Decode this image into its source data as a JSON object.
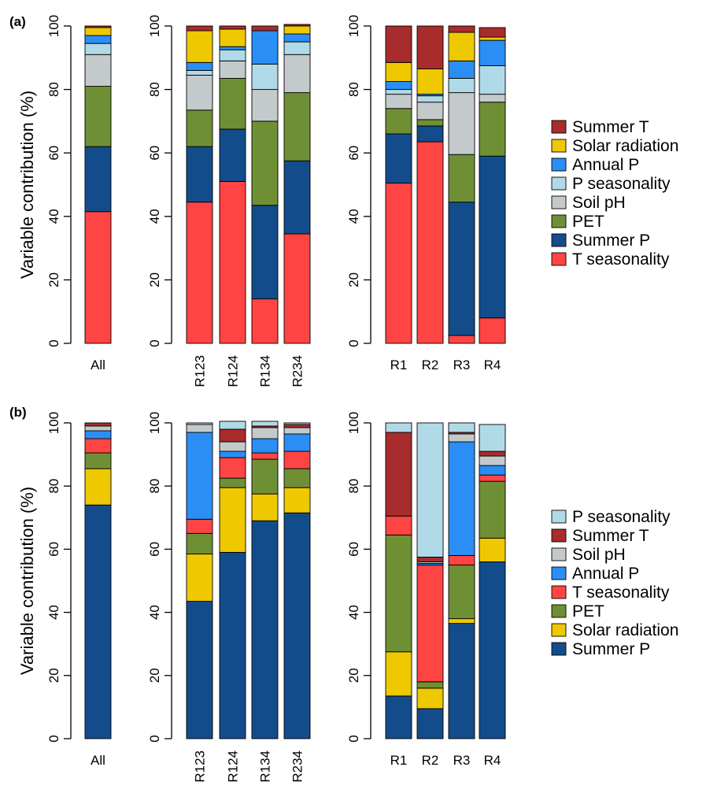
{
  "colors": {
    "Summer T": "#a82c2c",
    "Solar radiation": "#eec800",
    "Annual P": "#2b8ef5",
    "P seasonality": "#b0dae8",
    "Soil pH": "#c4cacb",
    "PET": "#6f8f35",
    "Summer P": "#134c8a",
    "T seasonality": "#ff4444"
  },
  "chart_data": [
    {
      "type": "bar",
      "stacked": true,
      "panel_label": "(a)",
      "ylabel": "Variable contribution (%)",
      "ylim": [
        0,
        100
      ],
      "yticks": [
        "0",
        "20",
        "40",
        "60",
        "80",
        "100"
      ],
      "legend": [
        "Summer T",
        "Solar radiation",
        "Annual P",
        "P seasonality",
        "Soil pH",
        "PET",
        "Summer P",
        "T seasonality"
      ],
      "groups": [
        {
          "categories": [
            "All"
          ],
          "label_rotation": 0,
          "bars": [
            {
              "category": "All",
              "stack": [
                {
                  "name": "T seasonality",
                  "value": 41.5
                },
                {
                  "name": "Summer P",
                  "value": 20.5
                },
                {
                  "name": "PET",
                  "value": 19.0
                },
                {
                  "name": "Soil pH",
                  "value": 10.0
                },
                {
                  "name": "P seasonality",
                  "value": 3.5
                },
                {
                  "name": "Annual P",
                  "value": 2.5
                },
                {
                  "name": "Solar radiation",
                  "value": 2.5
                },
                {
                  "name": "Summer T",
                  "value": 0.5
                }
              ]
            }
          ]
        },
        {
          "categories": [
            "R123",
            "R124",
            "R134",
            "R234"
          ],
          "label_rotation": -90,
          "bars": [
            {
              "category": "R123",
              "stack": [
                {
                  "name": "T seasonality",
                  "value": 44.5
                },
                {
                  "name": "Summer P",
                  "value": 17.5
                },
                {
                  "name": "PET",
                  "value": 11.5
                },
                {
                  "name": "Soil pH",
                  "value": 11.0
                },
                {
                  "name": "P seasonality",
                  "value": 1.5
                },
                {
                  "name": "Annual P",
                  "value": 2.5
                },
                {
                  "name": "Solar radiation",
                  "value": 10.0
                },
                {
                  "name": "Summer T",
                  "value": 1.5
                }
              ]
            },
            {
              "category": "R124",
              "stack": [
                {
                  "name": "T seasonality",
                  "value": 51.0
                },
                {
                  "name": "Summer P",
                  "value": 16.5
                },
                {
                  "name": "PET",
                  "value": 16.0
                },
                {
                  "name": "Soil pH",
                  "value": 5.5
                },
                {
                  "name": "P seasonality",
                  "value": 3.5
                },
                {
                  "name": "Annual P",
                  "value": 1.0
                },
                {
                  "name": "Solar radiation",
                  "value": 5.5
                },
                {
                  "name": "Summer T",
                  "value": 1.0
                }
              ]
            },
            {
              "category": "R134",
              "stack": [
                {
                  "name": "T seasonality",
                  "value": 14.0
                },
                {
                  "name": "Summer P",
                  "value": 29.5
                },
                {
                  "name": "PET",
                  "value": 26.5
                },
                {
                  "name": "Soil pH",
                  "value": 10.0
                },
                {
                  "name": "P seasonality",
                  "value": 8.0
                },
                {
                  "name": "Annual P",
                  "value": 10.5
                },
                {
                  "name": "Solar radiation",
                  "value": 0.0
                },
                {
                  "name": "Summer T",
                  "value": 1.5
                }
              ]
            },
            {
              "category": "R234",
              "stack": [
                {
                  "name": "T seasonality",
                  "value": 34.5
                },
                {
                  "name": "Summer P",
                  "value": 23.0
                },
                {
                  "name": "PET",
                  "value": 21.5
                },
                {
                  "name": "Soil pH",
                  "value": 12.0
                },
                {
                  "name": "P seasonality",
                  "value": 4.0
                },
                {
                  "name": "Annual P",
                  "value": 2.5
                },
                {
                  "name": "Solar radiation",
                  "value": 2.5
                },
                {
                  "name": "Summer T",
                  "value": 0.5
                }
              ]
            }
          ]
        },
        {
          "categories": [
            "R1",
            "R2",
            "R3",
            "R4"
          ],
          "label_rotation": 0,
          "bars": [
            {
              "category": "R1",
              "stack": [
                {
                  "name": "T seasonality",
                  "value": 50.5
                },
                {
                  "name": "Summer P",
                  "value": 15.5
                },
                {
                  "name": "PET",
                  "value": 8.0
                },
                {
                  "name": "Soil pH",
                  "value": 4.5
                },
                {
                  "name": "P seasonality",
                  "value": 1.5
                },
                {
                  "name": "Annual P",
                  "value": 2.5
                },
                {
                  "name": "Solar radiation",
                  "value": 6.0
                },
                {
                  "name": "Summer T",
                  "value": 11.5
                }
              ]
            },
            {
              "category": "R2",
              "stack": [
                {
                  "name": "T seasonality",
                  "value": 63.5
                },
                {
                  "name": "Summer P",
                  "value": 5.0
                },
                {
                  "name": "PET",
                  "value": 2.0
                },
                {
                  "name": "Soil pH",
                  "value": 5.5
                },
                {
                  "name": "P seasonality",
                  "value": 2.0
                },
                {
                  "name": "Annual P",
                  "value": 0.5
                },
                {
                  "name": "Solar radiation",
                  "value": 8.0
                },
                {
                  "name": "Summer T",
                  "value": 13.5
                }
              ]
            },
            {
              "category": "R3",
              "stack": [
                {
                  "name": "T seasonality",
                  "value": 2.5
                },
                {
                  "name": "Summer P",
                  "value": 42.0
                },
                {
                  "name": "PET",
                  "value": 15.0
                },
                {
                  "name": "Soil pH",
                  "value": 19.5
                },
                {
                  "name": "P seasonality",
                  "value": 4.5
                },
                {
                  "name": "Annual P",
                  "value": 5.5
                },
                {
                  "name": "Solar radiation",
                  "value": 9.0
                },
                {
                  "name": "Summer T",
                  "value": 2.0
                }
              ]
            },
            {
              "category": "R4",
              "stack": [
                {
                  "name": "T seasonality",
                  "value": 8.0
                },
                {
                  "name": "Summer P",
                  "value": 51.0
                },
                {
                  "name": "PET",
                  "value": 17.0
                },
                {
                  "name": "Soil pH",
                  "value": 2.5
                },
                {
                  "name": "P seasonality",
                  "value": 9.0
                },
                {
                  "name": "Annual P",
                  "value": 8.0
                },
                {
                  "name": "Solar radiation",
                  "value": 1.0
                },
                {
                  "name": "Summer T",
                  "value": 3.0
                }
              ]
            }
          ]
        }
      ]
    },
    {
      "type": "bar",
      "stacked": true,
      "panel_label": "(b)",
      "ylabel": "Variable contribution (%)",
      "ylim": [
        0,
        100
      ],
      "yticks": [
        "0",
        "20",
        "40",
        "60",
        "80",
        "100"
      ],
      "legend": [
        "P seasonality",
        "Summer T",
        "Soil pH",
        "Annual P",
        "T seasonality",
        "PET",
        "Solar radiation",
        "Summer P"
      ],
      "groups": [
        {
          "categories": [
            "All"
          ],
          "label_rotation": 0,
          "bars": [
            {
              "category": "All",
              "stack": [
                {
                  "name": "Summer P",
                  "value": 74.0
                },
                {
                  "name": "Solar radiation",
                  "value": 11.5
                },
                {
                  "name": "PET",
                  "value": 5.0
                },
                {
                  "name": "T seasonality",
                  "value": 4.5
                },
                {
                  "name": "Annual P",
                  "value": 2.5
                },
                {
                  "name": "Soil pH",
                  "value": 1.5
                },
                {
                  "name": "Summer T",
                  "value": 1.0
                }
              ]
            }
          ]
        },
        {
          "categories": [
            "R123",
            "R124",
            "R134",
            "R234"
          ],
          "label_rotation": -90,
          "bars": [
            {
              "category": "R123",
              "stack": [
                {
                  "name": "Summer P",
                  "value": 43.5
                },
                {
                  "name": "Solar radiation",
                  "value": 15.0
                },
                {
                  "name": "PET",
                  "value": 6.5
                },
                {
                  "name": "T seasonality",
                  "value": 4.5
                },
                {
                  "name": "Annual P",
                  "value": 27.5
                },
                {
                  "name": "Soil pH",
                  "value": 2.5
                },
                {
                  "name": "P seasonality",
                  "value": 0.5
                }
              ]
            },
            {
              "category": "R124",
              "stack": [
                {
                  "name": "Summer P",
                  "value": 59.0
                },
                {
                  "name": "Solar radiation",
                  "value": 20.5
                },
                {
                  "name": "PET",
                  "value": 3.0
                },
                {
                  "name": "T seasonality",
                  "value": 6.5
                },
                {
                  "name": "Annual P",
                  "value": 2.0
                },
                {
                  "name": "Soil pH",
                  "value": 3.0
                },
                {
                  "name": "Summer T",
                  "value": 4.0
                },
                {
                  "name": "P seasonality",
                  "value": 2.5
                }
              ]
            },
            {
              "category": "R134",
              "stack": [
                {
                  "name": "Summer P",
                  "value": 69.0
                },
                {
                  "name": "Solar radiation",
                  "value": 8.5
                },
                {
                  "name": "PET",
                  "value": 11.0
                },
                {
                  "name": "T seasonality",
                  "value": 2.0
                },
                {
                  "name": "Annual P",
                  "value": 4.5
                },
                {
                  "name": "Soil pH",
                  "value": 3.5
                },
                {
                  "name": "Summer T",
                  "value": 0.5
                },
                {
                  "name": "P seasonality",
                  "value": 1.5
                }
              ]
            },
            {
              "category": "R234",
              "stack": [
                {
                  "name": "Summer P",
                  "value": 71.5
                },
                {
                  "name": "Solar radiation",
                  "value": 8.0
                },
                {
                  "name": "PET",
                  "value": 6.0
                },
                {
                  "name": "T seasonality",
                  "value": 5.5
                },
                {
                  "name": "Annual P",
                  "value": 5.5
                },
                {
                  "name": "Soil pH",
                  "value": 2.0
                },
                {
                  "name": "Summer T",
                  "value": 1.0
                },
                {
                  "name": "P seasonality",
                  "value": 0.5
                }
              ]
            }
          ]
        },
        {
          "categories": [
            "R1",
            "R2",
            "R3",
            "R4"
          ],
          "label_rotation": 0,
          "bars": [
            {
              "category": "R1",
              "stack": [
                {
                  "name": "Summer P",
                  "value": 13.5
                },
                {
                  "name": "Solar radiation",
                  "value": 14.0
                },
                {
                  "name": "PET",
                  "value": 37.0
                },
                {
                  "name": "T seasonality",
                  "value": 6.0
                },
                {
                  "name": "Summer T",
                  "value": 26.5
                },
                {
                  "name": "P seasonality",
                  "value": 3.0
                }
              ]
            },
            {
              "category": "R2",
              "stack": [
                {
                  "name": "Summer P",
                  "value": 9.5
                },
                {
                  "name": "Solar radiation",
                  "value": 6.5
                },
                {
                  "name": "PET",
                  "value": 2.0
                },
                {
                  "name": "T seasonality",
                  "value": 37.0
                },
                {
                  "name": "Annual P",
                  "value": 0.5
                },
                {
                  "name": "Soil pH",
                  "value": 0.5
                },
                {
                  "name": "Summer T",
                  "value": 1.5
                },
                {
                  "name": "P seasonality",
                  "value": 42.5
                }
              ]
            },
            {
              "category": "R3",
              "stack": [
                {
                  "name": "Summer P",
                  "value": 36.5
                },
                {
                  "name": "Solar radiation",
                  "value": 1.5
                },
                {
                  "name": "PET",
                  "value": 17.0
                },
                {
                  "name": "T seasonality",
                  "value": 3.0
                },
                {
                  "name": "Annual P",
                  "value": 36.0
                },
                {
                  "name": "Soil pH",
                  "value": 2.5
                },
                {
                  "name": "Summer T",
                  "value": 0.5
                },
                {
                  "name": "P seasonality",
                  "value": 3.0
                }
              ]
            },
            {
              "category": "R4",
              "stack": [
                {
                  "name": "Summer P",
                  "value": 56.0
                },
                {
                  "name": "Solar radiation",
                  "value": 7.5
                },
                {
                  "name": "PET",
                  "value": 18.0
                },
                {
                  "name": "T seasonality",
                  "value": 2.0
                },
                {
                  "name": "Annual P",
                  "value": 3.0
                },
                {
                  "name": "Soil pH",
                  "value": 3.0
                },
                {
                  "name": "Summer T",
                  "value": 1.5
                },
                {
                  "name": "P seasonality",
                  "value": 8.5
                }
              ]
            }
          ]
        }
      ]
    }
  ]
}
